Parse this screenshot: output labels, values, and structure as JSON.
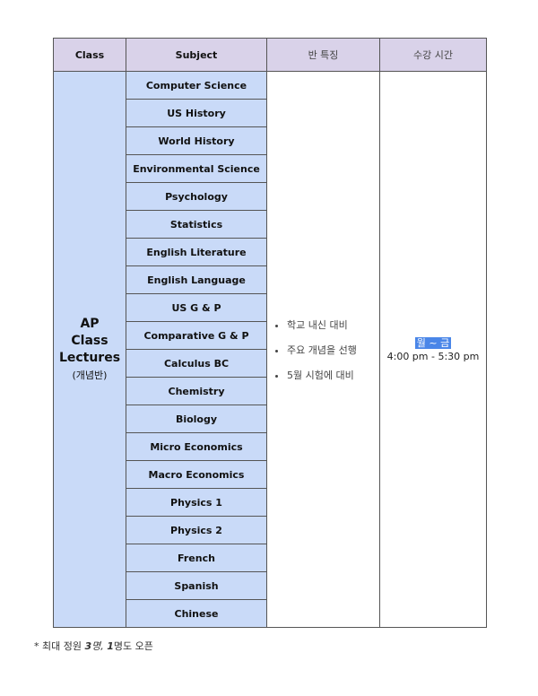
{
  "headers": {
    "class": "Class",
    "subject": "Subject",
    "features": "반 특징",
    "time": "수강 시간"
  },
  "class_cell": {
    "line1": "AP",
    "line2": "Class",
    "line3": "Lectures",
    "sub": "(개념반)"
  },
  "subjects": [
    "Computer Science",
    "US History",
    "World History",
    "Environmental Science",
    "Psychology",
    "Statistics",
    "English Literature",
    "English Language",
    "US G & P",
    "Comparative G & P",
    "Calculus BC",
    "Chemistry",
    "Biology",
    "Micro Economics",
    "Macro Economics",
    "Physics 1",
    "Physics 2",
    "French",
    "Spanish",
    "Chinese"
  ],
  "features": [
    "학교 내신 대비",
    "주요 개념을 선행",
    "5월 시험에 대비"
  ],
  "time": {
    "days": "월 ~ 금",
    "hours": "4:00 pm - 5:30 pm"
  },
  "footnote": {
    "prefix": "* 최대 정원 ",
    "n1": "3",
    "mid1": "명, ",
    "n2": "1",
    "suffix": "명도 오픈"
  },
  "colors": {
    "header_bg": "#d9d2e9",
    "subject_bg": "#c9daf8",
    "highlight": "#4a86e8"
  }
}
